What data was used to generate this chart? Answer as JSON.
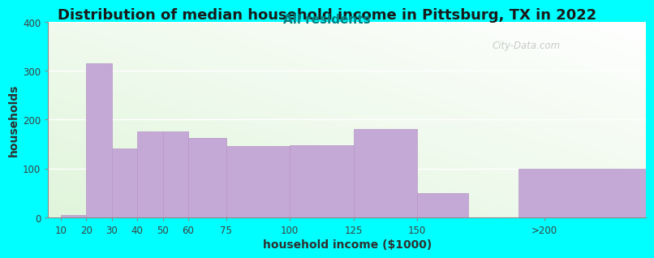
{
  "title": "Distribution of median household income in Pittsburg, TX in 2022",
  "subtitle": "All residents",
  "xlabel": "household income ($1000)",
  "ylabel": "households",
  "background_color": "#00FFFF",
  "bar_color": "#C4A8D5",
  "bar_edge_color": "#B898C8",
  "tick_labels": [
    "10",
    "20",
    "30",
    "40",
    "50",
    "60",
    "75",
    "100",
    "125",
    "150",
    ">200"
  ],
  "tick_positions": [
    10,
    20,
    30,
    40,
    50,
    60,
    75,
    100,
    125,
    150,
    200
  ],
  "bar_centers": [
    15,
    25,
    35,
    45,
    55,
    67.5,
    87.5,
    112.5,
    137.5,
    160,
    215
  ],
  "bar_widths": [
    10,
    10,
    10,
    10,
    10,
    15,
    25,
    25,
    25,
    20,
    50
  ],
  "values": [
    5,
    315,
    140,
    175,
    175,
    163,
    145,
    148,
    180,
    50,
    100
  ],
  "ylim": [
    0,
    400
  ],
  "yticks": [
    0,
    100,
    200,
    300,
    400
  ],
  "title_fontsize": 13,
  "subtitle_fontsize": 11,
  "subtitle_color": "#008080",
  "axis_label_fontsize": 10,
  "watermark": "City-Data.com",
  "xlim_left": 5,
  "xlim_right": 240
}
